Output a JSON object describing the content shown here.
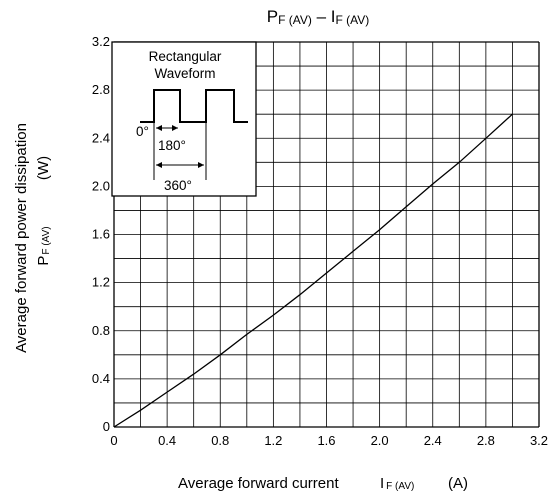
{
  "chart_data": {
    "type": "line",
    "title": {
      "main1": "P",
      "sub1": "F (AV)",
      "dash": " – I",
      "sub2": "F (AV)"
    },
    "xlabel": {
      "main": "Average forward current",
      "sym": "I",
      "sub": "F (AV)",
      "unit": "(A)"
    },
    "ylabel": {
      "line1": "Average forward power dissipation",
      "sym": "P",
      "sub": "F (AV)",
      "unit": "(W)"
    },
    "xlim": [
      0,
      3.2
    ],
    "ylim": [
      0,
      3.2
    ],
    "x_ticks": [
      "0",
      "0.4",
      "0.8",
      "1.2",
      "1.6",
      "2.0",
      "2.4",
      "2.8",
      "3.2"
    ],
    "y_ticks": [
      "0",
      "0.4",
      "0.8",
      "1.2",
      "1.6",
      "2.0",
      "2.4",
      "2.8",
      "3.2"
    ],
    "grid": true,
    "series": [
      {
        "x": [
          0,
          0.2,
          0.4,
          0.6,
          0.8,
          1.0,
          1.2,
          1.4,
          1.6,
          1.8,
          2.0,
          2.2,
          2.4,
          2.6,
          2.8,
          3.0
        ],
        "y": [
          0,
          0.14,
          0.29,
          0.44,
          0.6,
          0.77,
          0.93,
          1.1,
          1.28,
          1.46,
          1.64,
          1.83,
          2.02,
          2.2,
          2.4,
          2.6
        ]
      }
    ],
    "inset": {
      "title_line1": "Rectangular",
      "title_line2": "Waveform",
      "label_0": "0°",
      "label_180": "180°",
      "label_360": "360°"
    }
  },
  "colors": {
    "line": "#000000",
    "grid": "#000000",
    "background": "#ffffff"
  }
}
